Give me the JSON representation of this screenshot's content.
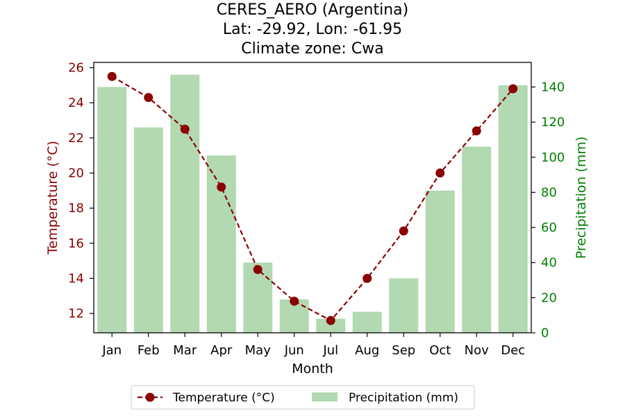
{
  "chart_data": {
    "type": "bar+line",
    "title_lines": [
      "CERES_AERO (Argentina)",
      "Lat: -29.92, Lon: -61.95",
      "Climate zone: Cwa"
    ],
    "xlabel": "Month",
    "ylabel_left": "Temperature (°C)",
    "ylabel_right": "Precipitation (mm)",
    "categories": [
      "Jan",
      "Feb",
      "Mar",
      "Apr",
      "May",
      "Jun",
      "Jul",
      "Aug",
      "Sep",
      "Oct",
      "Nov",
      "Dec"
    ],
    "temperature": {
      "name": "Temperature (°C)",
      "color": "#8b0000",
      "values": [
        25.5,
        24.3,
        22.5,
        19.2,
        14.5,
        12.7,
        11.6,
        14.0,
        16.7,
        20.0,
        22.4,
        24.8
      ]
    },
    "precipitation": {
      "name": "Precipitation (mm)",
      "color": "#b2d9b2",
      "values": [
        140,
        117,
        147,
        101,
        40,
        19,
        8,
        12,
        31,
        81,
        106,
        141
      ]
    },
    "ylim_left": [
      10.9,
      26.3
    ],
    "ylim_right": [
      0,
      154
    ],
    "yticks_left": [
      12,
      14,
      16,
      18,
      20,
      22,
      24,
      26
    ],
    "yticks_right": [
      0,
      20,
      40,
      60,
      80,
      100,
      120,
      140
    ],
    "left_axis_color": "#8b0000",
    "right_axis_color": "#008000",
    "legend_position": "bottom-center",
    "grid": false
  }
}
